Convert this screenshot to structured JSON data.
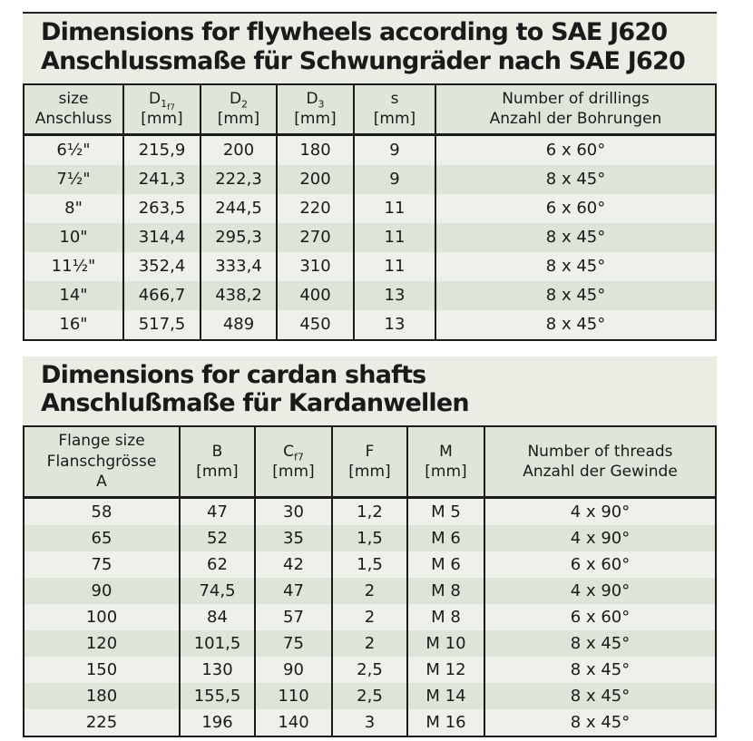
{
  "sections": [
    {
      "id": "flywheels",
      "title_en": "Dimensions for flywheels according to SAE J620",
      "title_de": "Anschlussmaße für Schwungräder nach SAE J620",
      "table": {
        "columns": [
          {
            "lines": [
              "size",
              "Anschluss"
            ]
          },
          {
            "main": "D",
            "sub": "1",
            "subsub": "f7",
            "unit": "[mm]"
          },
          {
            "main": "D",
            "sub": "2",
            "unit": "[mm]"
          },
          {
            "main": "D",
            "sub": "3",
            "unit": "[mm]"
          },
          {
            "main": "s",
            "unit": "[mm]"
          },
          {
            "lines": [
              "Number of drillings",
              "Anzahl der Bohrungen"
            ]
          }
        ],
        "rows": [
          [
            "6½\"",
            "215,9",
            "200",
            "180",
            "9",
            "6 x 60°"
          ],
          [
            "7½\"",
            "241,3",
            "222,3",
            "200",
            "9",
            "8 x 45°"
          ],
          [
            "8\"",
            "263,5",
            "244,5",
            "220",
            "11",
            "6 x 60°"
          ],
          [
            "10\"",
            "314,4",
            "295,3",
            "270",
            "11",
            "8 x 45°"
          ],
          [
            "11½\"",
            "352,4",
            "333,4",
            "310",
            "11",
            "8 x 45°"
          ],
          [
            "14\"",
            "466,7",
            "438,2",
            "400",
            "13",
            "8 x 45°"
          ],
          [
            "16\"",
            "517,5",
            "489",
            "450",
            "13",
            "8 x 45°"
          ]
        ]
      }
    },
    {
      "id": "cardan-shafts",
      "title_en": "Dimensions for cardan shafts",
      "title_de": "Anschlußmaße für Kardanwellen",
      "table": {
        "columns": [
          {
            "lines": [
              "Flange size",
              "Flanschgrösse",
              "A"
            ]
          },
          {
            "main": "B",
            "unit": "[mm]"
          },
          {
            "main": "C",
            "sub": "f7",
            "unit": "[mm]"
          },
          {
            "main": "F",
            "unit": "[mm]"
          },
          {
            "main": "M",
            "unit": "[mm]"
          },
          {
            "lines": [
              "Number of threads",
              "Anzahl der Gewinde"
            ]
          }
        ],
        "rows": [
          [
            "58",
            "47",
            "30",
            "1,2",
            "M 5",
            "4 x 90°"
          ],
          [
            "65",
            "52",
            "35",
            "1,5",
            "M 6",
            "4 x 90°"
          ],
          [
            "75",
            "62",
            "42",
            "1,5",
            "M 6",
            "6 x 60°"
          ],
          [
            "90",
            "74,5",
            "47",
            "2",
            "M 8",
            "4 x 90°"
          ],
          [
            "100",
            "84",
            "57",
            "2",
            "M 8",
            "6 x 60°"
          ],
          [
            "120",
            "101,5",
            "75",
            "2",
            "M 10",
            "8 x 45°"
          ],
          [
            "150",
            "130",
            "90",
            "2,5",
            "M 12",
            "8 x 45°"
          ],
          [
            "180",
            "155,5",
            "110",
            "2,5",
            "M 14",
            "8 x 45°"
          ],
          [
            "225",
            "196",
            "140",
            "3",
            "M 16",
            "8 x 45°"
          ]
        ]
      }
    }
  ],
  "colors": {
    "page_background": "#ffffff",
    "block_background": "#e9ede4",
    "header_background": "#dee6da",
    "stripe_light": "#eef1ea",
    "stripe_dark": "#dde5d8",
    "border": "#1b1b1b",
    "text": "#1a1a1a"
  }
}
